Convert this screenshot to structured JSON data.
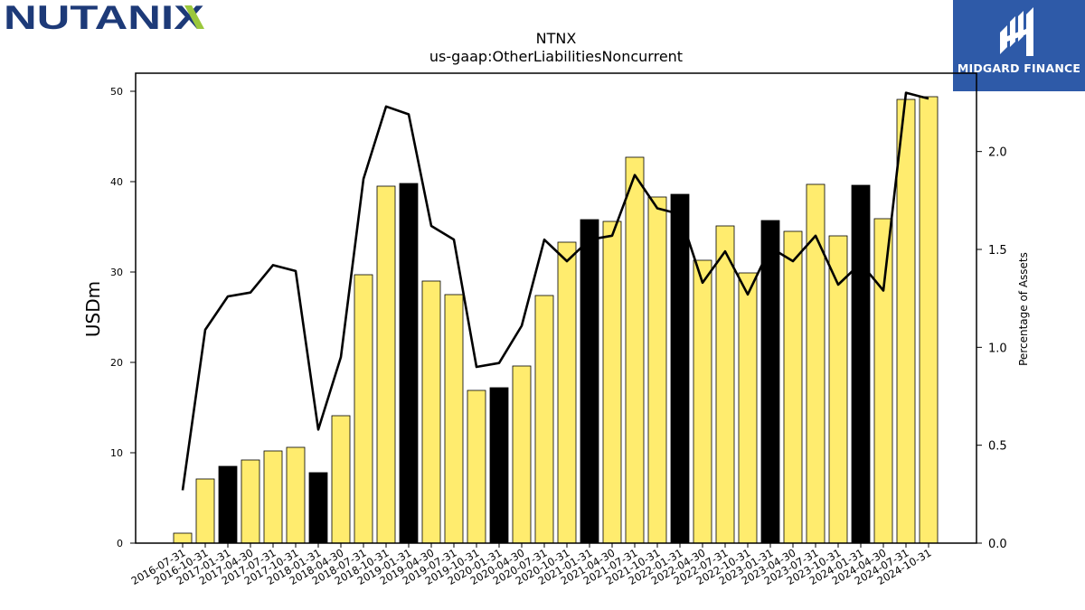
{
  "logos": {
    "left_text": "NUTANIX",
    "right_text": "MIDGARD FINANCE",
    "left_color": "#1d3a78",
    "left_accent": "#9bc83c",
    "right_bg": "#2e5aa8"
  },
  "chart_data": {
    "type": "bar",
    "title": "NTNX",
    "subtitle": "us-gaap:OtherLiabilitiesNoncurrent",
    "ylabel": "USDm",
    "y2label": "Percentage of Assets",
    "ylim": [
      0,
      52
    ],
    "y2lim": [
      0,
      2.4
    ],
    "yticks": [
      0,
      10,
      20,
      30,
      40,
      50
    ],
    "y2ticks": [
      0.0,
      0.5,
      1.0,
      1.5,
      2.0
    ],
    "categories": [
      "2016-07-31",
      "2016-10-31",
      "2017-01-31",
      "2017-04-30",
      "2017-07-31",
      "2017-10-31",
      "2018-01-31",
      "2018-04-30",
      "2018-07-31",
      "2018-10-31",
      "2019-01-31",
      "2019-04-30",
      "2019-07-31",
      "2019-10-31",
      "2020-01-31",
      "2020-04-30",
      "2020-07-31",
      "2020-10-31",
      "2021-01-31",
      "2021-04-30",
      "2021-07-31",
      "2021-10-31",
      "2022-01-31",
      "2022-04-30",
      "2022-07-31",
      "2022-10-31",
      "2023-01-31",
      "2023-04-30",
      "2023-07-31",
      "2023-10-31",
      "2024-01-31",
      "2024-04-30",
      "2024-07-31",
      "2024-10-31"
    ],
    "series": [
      {
        "kind": "bar",
        "values": [
          1.1,
          7.1,
          8.5,
          9.2,
          10.2,
          10.6,
          7.8,
          14.1,
          29.7,
          39.5,
          39.8,
          29.0,
          27.5,
          16.9,
          17.2,
          19.6,
          27.4,
          33.3,
          35.8,
          35.6,
          42.7,
          38.3,
          38.6,
          31.3,
          35.1,
          29.9,
          35.7,
          34.5,
          39.7,
          34.0,
          39.6,
          35.9,
          49.1,
          49.4
        ],
        "highlight": [
          false,
          false,
          true,
          false,
          false,
          false,
          true,
          false,
          false,
          false,
          true,
          false,
          false,
          false,
          true,
          false,
          false,
          false,
          true,
          false,
          false,
          false,
          true,
          false,
          false,
          false,
          true,
          false,
          false,
          false,
          true,
          false,
          false,
          false
        ],
        "color": "#ffec6e",
        "highlight_color": "#000000"
      },
      {
        "kind": "line",
        "axis": "y2",
        "values": [
          0.27,
          1.09,
          1.26,
          1.28,
          1.42,
          1.39,
          0.58,
          0.95,
          1.86,
          2.23,
          2.19,
          1.62,
          1.55,
          0.9,
          0.92,
          1.11,
          1.55,
          1.44,
          1.55,
          1.57,
          1.88,
          1.71,
          1.68,
          1.33,
          1.49,
          1.27,
          1.51,
          1.44,
          1.57,
          1.32,
          1.43,
          1.29,
          2.3,
          2.27
        ],
        "color": "#000000"
      }
    ]
  }
}
